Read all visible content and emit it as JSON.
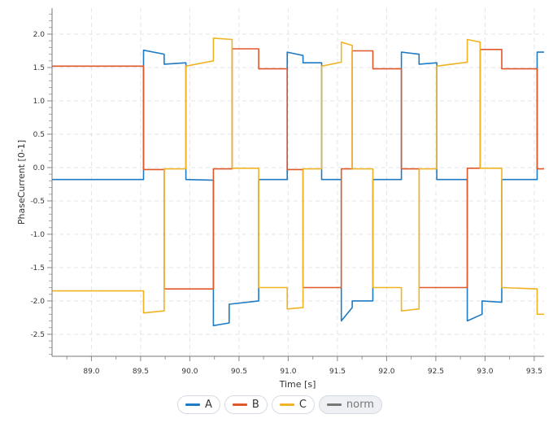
{
  "chart_data": {
    "type": "line",
    "xlabel": "Time [s]",
    "ylabel": "PhaseCurrent [0-1]",
    "xlim": [
      88.6,
      93.6
    ],
    "ylim": [
      -2.83,
      2.39
    ],
    "xticks": [
      89.0,
      89.5,
      90.0,
      90.5,
      91.0,
      91.5,
      92.0,
      92.5,
      93.0,
      93.5
    ],
    "xtick_labels": [
      "89.0",
      "89.5",
      "90.0",
      "90.5",
      "91.0",
      "91.5",
      "92.0",
      "92.5",
      "93.0",
      "93.5"
    ],
    "yticks": [
      -2.5,
      -2.0,
      -1.5,
      -1.0,
      -0.5,
      0.0,
      0.5,
      1.0,
      1.5,
      2.0
    ],
    "ytick_labels": [
      "-2.5",
      "-2.0",
      "-1.5",
      "-1.0",
      "-0.5",
      "0.0",
      "0.5",
      "1.0",
      "1.5",
      "2.0"
    ],
    "grid": true,
    "legend_placement": "bottom",
    "series": [
      {
        "name": "A",
        "color": "#1f7bc4",
        "visible": true,
        "segments": [
          [
            88.6,
            89.53,
            -0.18,
            -0.18
          ],
          [
            89.53,
            89.74,
            1.76,
            1.7
          ],
          [
            89.74,
            89.96,
            1.55,
            1.57
          ],
          [
            89.96,
            90.24,
            -0.18,
            -0.19
          ],
          [
            90.24,
            90.4,
            -2.37,
            -2.33
          ],
          [
            90.4,
            90.7,
            -2.05,
            -2.0
          ],
          [
            90.7,
            90.99,
            -0.18,
            -0.18
          ],
          [
            90.99,
            91.15,
            1.73,
            1.68
          ],
          [
            91.15,
            91.34,
            1.57,
            1.57
          ],
          [
            91.34,
            91.54,
            -0.18,
            -0.18
          ],
          [
            91.54,
            91.65,
            -2.3,
            -2.1
          ],
          [
            91.65,
            91.86,
            -2.0,
            -2.0
          ],
          [
            91.86,
            92.15,
            -0.18,
            -0.18
          ],
          [
            92.15,
            92.33,
            1.73,
            1.7
          ],
          [
            92.33,
            92.51,
            1.55,
            1.57
          ],
          [
            92.51,
            92.82,
            -0.18,
            -0.18
          ],
          [
            92.82,
            92.97,
            -2.3,
            -2.2
          ],
          [
            92.97,
            93.17,
            -2.0,
            -2.02
          ],
          [
            93.17,
            93.53,
            -0.18,
            -0.18
          ],
          [
            93.53,
            93.6,
            1.73,
            1.73
          ]
        ]
      },
      {
        "name": "B",
        "color": "#e0582a",
        "visible": true,
        "segments": [
          [
            88.6,
            89.53,
            1.52,
            1.52
          ],
          [
            89.53,
            89.74,
            -0.03,
            -0.03
          ],
          [
            89.74,
            90.24,
            -1.82,
            -1.82
          ],
          [
            90.24,
            90.43,
            -0.02,
            -0.02
          ],
          [
            90.43,
            90.7,
            1.78,
            1.78
          ],
          [
            90.7,
            90.99,
            1.48,
            1.48
          ],
          [
            90.99,
            91.15,
            -0.03,
            -0.03
          ],
          [
            91.15,
            91.54,
            -1.8,
            -1.8
          ],
          [
            91.54,
            91.65,
            -0.02,
            -0.02
          ],
          [
            91.65,
            91.86,
            1.75,
            1.75
          ],
          [
            91.86,
            92.15,
            1.48,
            1.48
          ],
          [
            92.15,
            92.33,
            -0.02,
            -0.02
          ],
          [
            92.33,
            92.82,
            -1.8,
            -1.8
          ],
          [
            92.82,
            92.95,
            -0.01,
            -0.01
          ],
          [
            92.95,
            93.17,
            1.77,
            1.77
          ],
          [
            93.17,
            93.53,
            1.48,
            1.48
          ],
          [
            93.53,
            93.6,
            -0.02,
            -0.02
          ]
        ]
      },
      {
        "name": "C",
        "color": "#f0b323",
        "visible": true,
        "segments": [
          [
            88.6,
            89.53,
            -1.85,
            -1.85
          ],
          [
            89.53,
            89.74,
            -2.18,
            -2.15
          ],
          [
            89.74,
            89.96,
            -0.02,
            -0.02
          ],
          [
            89.96,
            90.24,
            1.52,
            1.6
          ],
          [
            90.24,
            90.43,
            1.94,
            1.92
          ],
          [
            90.43,
            90.7,
            -0.01,
            -0.01
          ],
          [
            90.7,
            90.99,
            -1.8,
            -1.8
          ],
          [
            90.99,
            91.15,
            -2.12,
            -2.1
          ],
          [
            91.15,
            91.34,
            -0.02,
            -0.02
          ],
          [
            91.34,
            91.54,
            1.52,
            1.58
          ],
          [
            91.54,
            91.65,
            1.88,
            1.83
          ],
          [
            91.65,
            91.86,
            -0.02,
            -0.02
          ],
          [
            91.86,
            92.15,
            -1.8,
            -1.8
          ],
          [
            92.15,
            92.33,
            -2.15,
            -2.12
          ],
          [
            92.33,
            92.51,
            -0.02,
            -0.02
          ],
          [
            92.51,
            92.82,
            1.52,
            1.58
          ],
          [
            92.82,
            92.95,
            1.92,
            1.88
          ],
          [
            92.95,
            93.17,
            -0.01,
            -0.01
          ],
          [
            93.17,
            93.53,
            -1.8,
            -1.82
          ],
          [
            93.53,
            93.6,
            -2.2,
            -2.2
          ]
        ]
      },
      {
        "name": "norm",
        "color": "#777777",
        "visible": false,
        "segments": []
      }
    ]
  },
  "legend": [
    {
      "label": "A",
      "color": "#1f7bc4",
      "active": true
    },
    {
      "label": "B",
      "color": "#e0582a",
      "active": true
    },
    {
      "label": "C",
      "color": "#f0b323",
      "active": true
    },
    {
      "label": "norm",
      "color": "#777777",
      "active": false
    }
  ]
}
